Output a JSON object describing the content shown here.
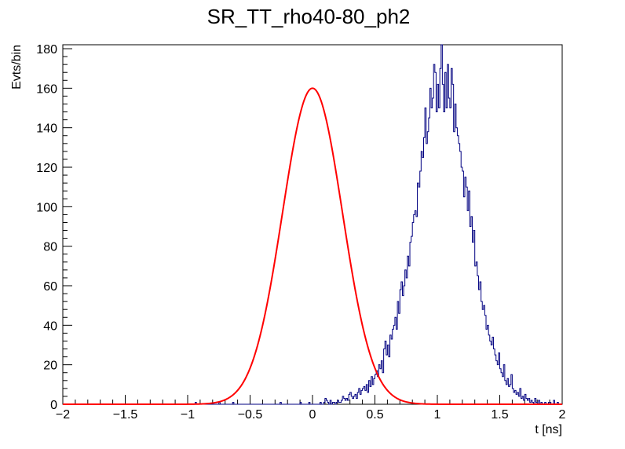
{
  "chart_data": {
    "type": "line",
    "title": "SR_TT_rho40-80_ph2",
    "xlabel": "t [ns]",
    "ylabel": "Evts/bin",
    "xlim": [
      -2,
      2
    ],
    "ylim": [
      0,
      182
    ],
    "x_ticks": [
      -2,
      -1.5,
      -1,
      -0.5,
      0,
      0.5,
      1,
      1.5,
      2
    ],
    "x_tick_labels": [
      "−2",
      "−1.5",
      "−1",
      "−0.5",
      "0",
      "0.5",
      "1",
      "1.5",
      "2"
    ],
    "y_ticks": [
      0,
      20,
      40,
      60,
      80,
      100,
      120,
      140,
      160,
      180
    ],
    "y_tick_labels": [
      "0",
      "20",
      "40",
      "60",
      "80",
      "100",
      "120",
      "140",
      "160",
      "180"
    ],
    "grid": false,
    "series": [
      {
        "kind": "histogram",
        "color": "#000080",
        "bin_edges_start": -2,
        "bin_width": 0.01,
        "values": [
          0,
          0,
          0,
          0,
          0,
          0,
          0,
          0,
          0,
          0,
          0,
          0,
          0,
          0,
          0,
          0,
          0,
          0,
          0,
          0,
          0,
          0,
          0,
          0,
          0,
          0,
          0,
          0,
          0,
          0,
          0,
          0,
          0,
          0,
          0,
          0,
          0,
          0,
          0,
          0,
          0,
          0,
          0,
          0,
          0,
          0,
          0,
          0,
          0,
          0,
          0,
          0,
          0,
          0,
          0,
          0,
          0,
          0,
          0,
          0,
          0,
          0,
          0,
          0,
          0,
          0,
          0,
          0,
          0,
          0,
          0,
          0,
          0,
          0,
          0,
          0,
          0,
          0,
          0,
          0,
          0,
          0,
          0,
          0,
          0,
          0,
          0,
          0,
          0,
          0,
          0,
          0,
          0,
          0,
          0,
          0,
          0,
          0,
          0,
          0,
          0,
          0,
          0,
          0,
          0,
          0,
          1,
          0,
          0,
          0,
          0,
          0,
          0,
          0,
          0,
          0,
          0,
          0,
          0,
          0,
          0,
          0,
          0,
          0,
          0,
          1,
          0,
          0,
          0,
          0,
          0,
          0,
          0,
          0,
          0,
          0,
          1,
          0,
          0,
          0,
          0,
          0,
          0,
          0,
          0,
          0,
          0,
          0,
          0,
          0,
          0,
          0,
          0,
          0,
          0,
          0,
          0,
          0,
          0,
          0,
          0,
          0,
          0,
          0,
          0,
          0,
          0,
          0,
          0,
          0,
          0,
          0,
          0,
          0,
          1,
          0,
          0,
          0,
          0,
          0,
          0,
          0,
          0,
          0,
          0,
          0,
          0,
          0,
          0,
          0,
          1,
          0,
          0,
          0,
          0,
          0,
          0,
          1,
          0,
          0,
          0,
          0,
          0,
          0,
          0,
          0,
          1,
          0,
          0,
          1,
          3,
          2,
          1,
          0,
          2,
          0,
          1,
          1,
          0,
          1,
          2,
          1,
          1,
          2,
          4,
          3,
          2,
          3,
          2,
          5,
          6,
          4,
          3,
          4,
          5,
          3,
          6,
          8,
          5,
          7,
          8,
          9,
          7,
          10,
          6,
          12,
          9,
          14,
          10,
          13,
          15,
          17,
          14,
          20,
          18,
          22,
          16,
          28,
          32,
          25,
          30,
          24,
          35,
          33,
          38,
          40,
          44,
          38,
          52,
          46,
          58,
          62,
          55,
          60,
          68,
          64,
          75,
          70,
          82,
          85,
          92,
          96,
          98,
          95,
          112,
          110,
          118,
          128,
          125,
          135,
          150,
          132,
          138,
          145,
          160,
          150,
          155,
          172,
          168,
          148,
          162,
          150,
          170,
          182,
          162,
          148,
          168,
          150,
          172,
          155,
          150,
          170,
          162,
          138,
          152,
          140,
          136,
          132,
          128,
          120,
          118,
          105,
          115,
          110,
          98,
          108,
          90,
          95,
          82,
          88,
          70,
          72,
          65,
          58,
          62,
          52,
          48,
          50,
          45,
          38,
          40,
          35,
          32,
          30,
          34,
          28,
          25,
          22,
          20,
          26,
          18,
          16,
          14,
          20,
          12,
          10,
          13,
          9,
          10,
          15,
          8,
          6,
          7,
          5,
          6,
          4,
          8,
          3,
          4,
          2,
          5,
          3,
          2,
          3,
          1,
          2,
          1,
          0,
          3,
          1,
          0,
          2,
          0,
          1,
          0,
          0,
          1,
          0,
          0,
          1,
          1,
          0,
          0,
          2,
          0,
          0,
          1,
          0,
          0,
          0,
          0,
          0,
          0,
          1,
          0,
          0,
          0,
          0,
          0,
          0,
          0,
          0,
          0,
          1,
          0,
          0,
          0,
          1,
          0,
          0,
          0,
          0,
          0,
          0,
          0,
          0,
          0,
          0,
          0,
          0,
          0,
          1,
          0,
          0,
          0,
          0,
          0,
          0,
          0,
          0,
          0,
          0,
          0,
          0,
          0,
          0,
          0,
          0,
          0,
          0,
          0,
          0,
          0,
          0,
          0,
          0,
          0,
          0,
          0,
          0,
          0,
          0,
          0,
          0,
          0,
          0,
          0,
          0,
          0,
          0,
          0,
          0,
          0,
          0,
          0,
          0,
          0,
          0,
          0,
          0,
          0,
          0,
          0,
          0,
          0,
          0,
          0,
          0,
          0,
          0,
          0,
          0,
          0,
          0,
          0,
          0,
          0,
          0,
          0,
          0,
          0,
          0,
          0,
          0,
          0,
          0,
          0,
          0,
          0,
          0,
          0,
          0,
          0,
          0,
          0,
          0,
          0,
          0,
          0,
          0,
          0,
          0,
          0,
          0,
          0,
          0,
          0,
          0,
          0,
          0,
          0,
          0,
          0,
          0,
          0,
          0,
          0,
          0,
          0,
          0,
          0,
          0,
          0,
          0,
          0,
          0,
          0,
          0,
          0,
          0,
          0,
          0,
          0,
          0,
          0,
          0,
          0,
          0,
          0,
          0,
          0,
          0,
          0,
          0,
          0,
          0,
          0,
          0,
          0,
          0,
          0,
          0,
          0,
          0,
          0,
          0,
          0,
          0,
          0,
          0,
          0,
          0,
          0,
          0,
          0,
          0,
          0,
          0,
          0,
          0,
          0,
          0,
          0,
          0,
          0,
          0,
          0,
          0,
          0,
          0,
          0,
          0,
          0,
          0,
          0,
          0,
          0,
          0,
          0,
          0,
          0,
          0,
          0,
          0,
          0,
          0,
          0,
          0,
          0,
          0,
          0,
          0,
          0,
          0,
          0,
          0,
          0,
          0,
          0,
          0,
          0,
          0,
          0,
          0,
          0,
          0,
          0,
          0,
          0,
          0,
          0,
          0,
          0,
          0,
          0,
          0,
          0,
          0,
          0,
          0,
          0,
          0,
          0,
          0,
          0,
          0,
          0,
          0,
          0,
          0,
          0,
          0,
          0,
          0,
          0,
          0,
          0,
          0,
          0,
          0,
          0,
          0,
          0,
          0,
          0,
          0,
          0,
          0,
          0,
          0,
          0,
          0,
          0,
          0,
          0,
          0,
          0,
          0,
          0,
          0,
          0,
          0,
          0,
          0,
          0,
          0,
          0,
          0,
          0,
          0,
          0,
          0,
          0,
          0,
          0,
          0,
          0,
          0,
          0,
          0,
          0,
          0,
          0,
          0,
          0,
          0,
          0,
          0,
          0,
          0,
          0,
          0,
          0,
          0,
          0,
          0,
          0,
          0,
          0,
          0,
          0,
          0,
          0,
          0,
          0,
          0,
          0,
          0,
          0,
          0,
          0,
          0,
          0,
          0,
          0,
          0,
          0,
          0,
          0,
          0,
          0,
          0,
          0,
          0,
          0,
          0,
          0,
          0,
          0,
          0,
          0,
          0,
          0,
          0,
          0,
          0,
          0,
          0,
          0,
          0,
          0,
          0,
          0,
          0,
          0,
          0,
          0,
          0,
          0,
          0,
          0,
          0,
          0,
          0,
          0,
          0,
          0,
          0,
          0,
          0,
          0,
          0,
          0,
          0,
          0,
          0,
          0,
          0,
          0,
          0
        ]
      },
      {
        "kind": "gaussian_fit",
        "color": "#ff0000",
        "amplitude": 160,
        "mean": 0.0,
        "sigma": 0.24
      }
    ]
  }
}
